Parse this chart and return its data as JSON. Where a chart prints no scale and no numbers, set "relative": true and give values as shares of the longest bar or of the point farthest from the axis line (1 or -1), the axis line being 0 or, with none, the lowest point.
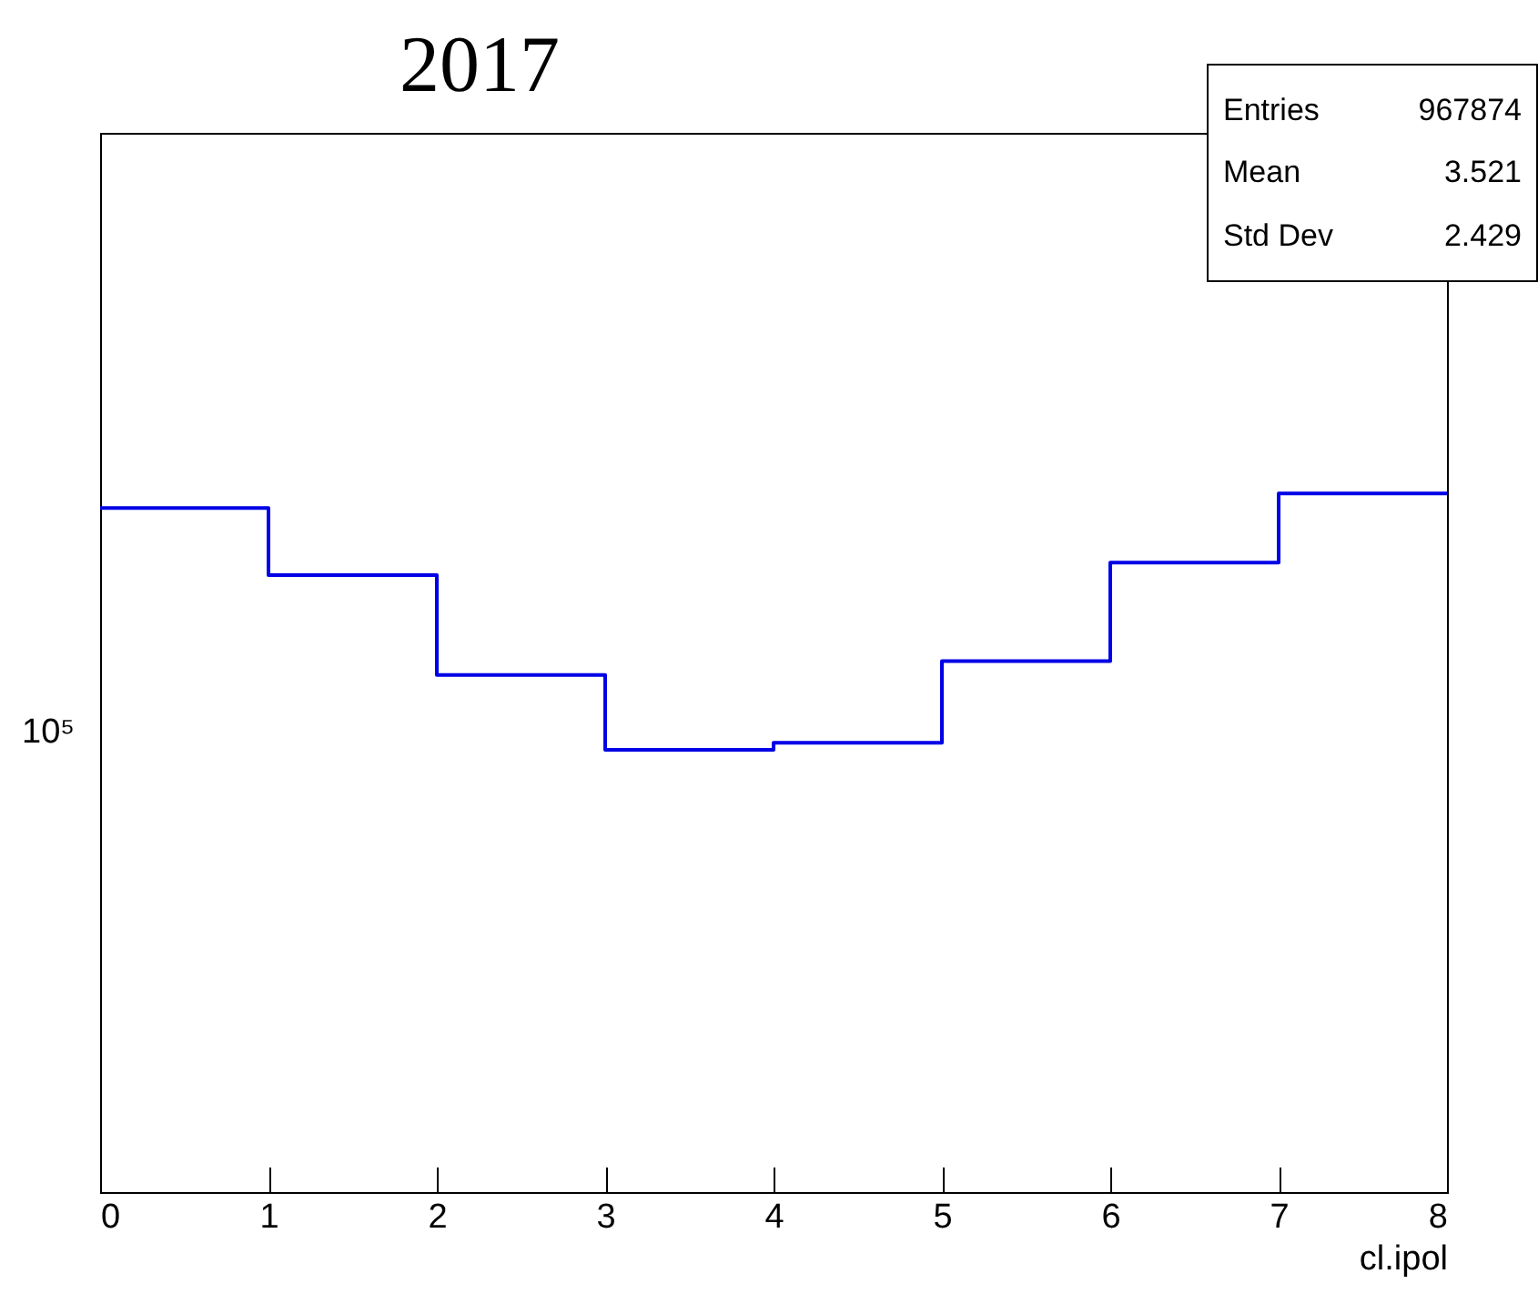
{
  "chart_data": {
    "type": "step",
    "title": "2017",
    "xlabel": "cl.ipol",
    "x": [
      0,
      1,
      2,
      3,
      4,
      5,
      6,
      7,
      8
    ],
    "values": [
      0.979,
      0.883,
      0.74,
      0.633,
      0.643,
      0.76,
      0.901,
      1,
      1
    ],
    "relative": true,
    "color": "#0000e6",
    "xlim": [
      0,
      8
    ],
    "xticks": [
      0,
      1,
      2,
      3,
      4,
      5,
      6,
      7,
      8
    ],
    "annotations": [
      "Entries",
      "967874",
      "Mean",
      "3.521",
      "Std Dev",
      "2.429",
      "10⁵"
    ]
  }
}
